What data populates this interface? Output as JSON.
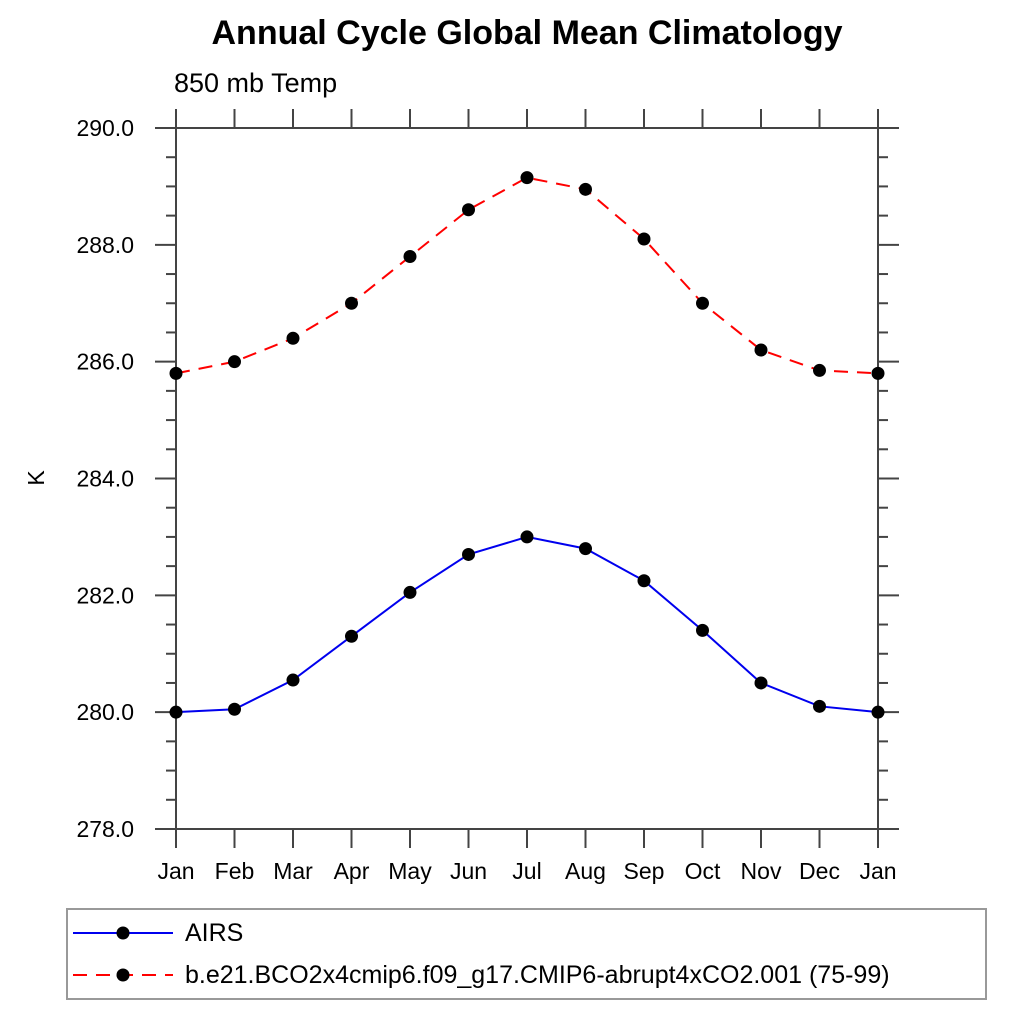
{
  "chart": {
    "title": "Annual Cycle Global Mean Climatology",
    "subtitle": "850 mb Temp",
    "ylabel": "K"
  },
  "chart_data": {
    "type": "line",
    "title": "Annual Cycle Global Mean Climatology",
    "subtitle": "850 mb Temp",
    "xlabel": "",
    "ylabel": "K",
    "categories": [
      "Jan",
      "Feb",
      "Mar",
      "Apr",
      "May",
      "Jun",
      "Jul",
      "Aug",
      "Sep",
      "Oct",
      "Nov",
      "Dec",
      "Jan"
    ],
    "ylim": [
      278.0,
      290.0
    ],
    "ytick_major_step": 2.0,
    "ytick_minor_step": 0.5,
    "ytick_labels": [
      "278.0",
      "280.0",
      "282.0",
      "284.0",
      "286.0",
      "288.0",
      "290.0"
    ],
    "grid": false,
    "legend_position": "bottom-left-box",
    "series": [
      {
        "name": "AIRS",
        "color": "#0000ee",
        "line_style": "solid",
        "marker": "filled-circle",
        "marker_color": "#000000",
        "values": [
          280.0,
          280.05,
          280.55,
          281.3,
          282.05,
          282.7,
          283.0,
          282.8,
          282.25,
          281.4,
          280.5,
          280.1,
          280.0
        ]
      },
      {
        "name": "b.e21.BCO2x4cmip6.f09_g17.CMIP6-abrupt4xCO2.001 (75-99)",
        "color": "#ff0000",
        "line_style": "dashed",
        "marker": "filled-circle",
        "marker_color": "#000000",
        "values": [
          285.8,
          286.0,
          286.4,
          287.0,
          287.8,
          288.6,
          289.15,
          288.95,
          288.1,
          287.0,
          286.2,
          285.85,
          285.8
        ]
      }
    ]
  },
  "colors": {
    "axis": "#444444",
    "text": "#000000",
    "legend_border": "#999999",
    "background": "#ffffff"
  }
}
